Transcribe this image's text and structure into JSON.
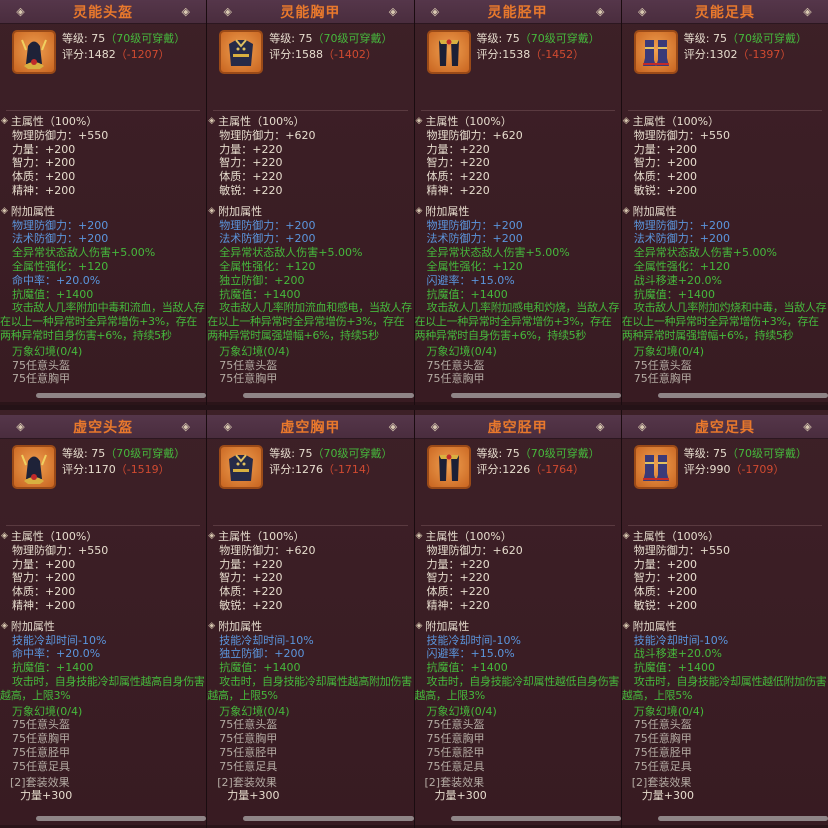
{
  "panels": [
    {
      "title": "灵能头盔",
      "level_label": "等级:",
      "level": "75",
      "req": "（70级可穿戴）",
      "score_label": "评分:",
      "score": "1482",
      "diff": "（-1207）",
      "main_header": "主属性（100%）",
      "main_attrs": [
        "物理防御力：+550",
        "力量：+200",
        "智力：+200",
        "体质：+200",
        "精神：+200"
      ],
      "extra_header": "附加属性",
      "extra_attrs": [
        {
          "text": "物理防御力：+200",
          "color": "blue"
        },
        {
          "text": "法术防御力：+200",
          "color": "blue"
        },
        {
          "text": "全异常状态敌人伤害+5.00%",
          "color": "green"
        },
        {
          "text": "全属性强化：+120",
          "color": "green"
        },
        {
          "text": "命中率：+20.0%",
          "color": "blue"
        },
        {
          "text": "抗魔值：+1400",
          "color": "green"
        }
      ],
      "effect": "攻击敌人几率附加中毒和流血，当敌人存在以上一种异常时全异常增伤+3%，存在两种异常时自身伤害+6%，持续5秒",
      "set_name": "万象幻境(0/4)",
      "set_items": [
        "75任意头盔",
        "75任意胸甲"
      ],
      "icon": "helmet-icon"
    },
    {
      "title": "灵能胸甲",
      "level_label": "等级:",
      "level": "75",
      "req": "（70级可穿戴）",
      "score_label": "评分:",
      "score": "1588",
      "diff": "（-1402）",
      "main_header": "主属性（100%）",
      "main_attrs": [
        "物理防御力：+620",
        "力量：+220",
        "智力：+220",
        "体质：+220",
        "敏锐：+220"
      ],
      "extra_header": "附加属性",
      "extra_attrs": [
        {
          "text": "物理防御力：+200",
          "color": "blue"
        },
        {
          "text": "法术防御力：+200",
          "color": "blue"
        },
        {
          "text": "全异常状态敌人伤害+5.00%",
          "color": "green"
        },
        {
          "text": "全属性强化：+120",
          "color": "green"
        },
        {
          "text": "独立防御：+200",
          "color": "green"
        },
        {
          "text": "抗魔值：+1400",
          "color": "green"
        }
      ],
      "effect": "攻击敌人几率附加流血和感电，当敌人存在以上一种异常时全异常增伤+3%，存在两种异常时属强增幅+6%，持续5秒",
      "set_name": "万象幻境(0/4)",
      "set_items": [
        "75任意头盔",
        "75任意胸甲"
      ],
      "icon": "chest-armor-icon"
    },
    {
      "title": "灵能胫甲",
      "level_label": "等级:",
      "level": "75",
      "req": "（70级可穿戴）",
      "score_label": "评分:",
      "score": "1538",
      "diff": "（-1452）",
      "main_header": "主属性（100%）",
      "main_attrs": [
        "物理防御力：+620",
        "力量：+220",
        "智力：+220",
        "体质：+220",
        "精神：+220"
      ],
      "extra_header": "附加属性",
      "extra_attrs": [
        {
          "text": "物理防御力：+200",
          "color": "blue"
        },
        {
          "text": "法术防御力：+200",
          "color": "blue"
        },
        {
          "text": "全异常状态敌人伤害+5.00%",
          "color": "green"
        },
        {
          "text": "全属性强化：+120",
          "color": "green"
        },
        {
          "text": "闪避率：+15.0%",
          "color": "blue"
        },
        {
          "text": "抗魔值：+1400",
          "color": "green"
        }
      ],
      "effect": "攻击敌人几率附加感电和灼烧，当敌人存在以上一种异常时全异常增伤+3%，存在两种异常时自身伤害+6%，持续5秒",
      "set_name": "万象幻境(0/4)",
      "set_items": [
        "75任意头盔",
        "75任意胸甲"
      ],
      "icon": "leg-armor-icon"
    },
    {
      "title": "灵能足具",
      "level_label": "等级:",
      "level": "75",
      "req": "（70级可穿戴）",
      "score_label": "评分:",
      "score": "1302",
      "diff": "（-1397）",
      "main_header": "主属性（100%）",
      "main_attrs": [
        "物理防御力：+550",
        "力量：+200",
        "智力：+200",
        "体质：+200",
        "敏锐：+200"
      ],
      "extra_header": "附加属性",
      "extra_attrs": [
        {
          "text": "物理防御力：+200",
          "color": "blue"
        },
        {
          "text": "法术防御力：+200",
          "color": "blue"
        },
        {
          "text": "全异常状态敌人伤害+5.00%",
          "color": "green"
        },
        {
          "text": "全属性强化：+120",
          "color": "green"
        },
        {
          "text": "战斗移速+20.0%",
          "color": "green"
        },
        {
          "text": "抗魔值：+1400",
          "color": "green"
        }
      ],
      "effect": "攻击敌人几率附加灼烧和中毒，当敌人存在以上一种异常时全异常增伤+3%，存在两种异常时属强增幅+6%，持续5秒",
      "set_name": "万象幻境(0/4)",
      "set_items": [
        "75任意头盔",
        "75任意胸甲"
      ],
      "icon": "boots-icon"
    },
    {
      "title": "虚空头盔",
      "level_label": "等级:",
      "level": "75",
      "req": "（70级可穿戴）",
      "score_label": "评分:",
      "score": "1170",
      "diff": "（-1519）",
      "main_header": "主属性（100%）",
      "main_attrs": [
        "物理防御力：+550",
        "力量：+200",
        "智力：+200",
        "体质：+200",
        "精神：+200"
      ],
      "extra_header": "附加属性",
      "extra_attrs": [
        {
          "text": "技能冷却时间-10%",
          "color": "blue"
        },
        {
          "text": "命中率：+20.0%",
          "color": "blue"
        },
        {
          "text": "抗魔值：+1400",
          "color": "green"
        }
      ],
      "effect": "攻击时，自身技能冷却属性越高自身伤害越高，上限3%",
      "set_name": "万象幻境(0/4)",
      "set_items": [
        "75任意头盔",
        "75任意胸甲",
        "75任意胫甲",
        "75任意足具"
      ],
      "set_effect_title": "[2]套装效果",
      "set_effect": "力量+300",
      "icon": "helmet-icon"
    },
    {
      "title": "虚空胸甲",
      "level_label": "等级:",
      "level": "75",
      "req": "（70级可穿戴）",
      "score_label": "评分:",
      "score": "1276",
      "diff": "（-1714）",
      "main_header": "主属性（100%）",
      "main_attrs": [
        "物理防御力：+620",
        "力量：+220",
        "智力：+220",
        "体质：+220",
        "敏锐：+220"
      ],
      "extra_header": "附加属性",
      "extra_attrs": [
        {
          "text": "技能冷却时间-10%",
          "color": "blue"
        },
        {
          "text": "独立防御：+200",
          "color": "blue"
        },
        {
          "text": "抗魔值：+1400",
          "color": "green"
        }
      ],
      "effect": "攻击时，自身技能冷却属性越高附加伤害越高，上限5%",
      "set_name": "万象幻境(0/4)",
      "set_items": [
        "75任意头盔",
        "75任意胸甲",
        "75任意胫甲",
        "75任意足具"
      ],
      "set_effect_title": "[2]套装效果",
      "set_effect": "力量+300",
      "icon": "chest-armor-icon"
    },
    {
      "title": "虚空胫甲",
      "level_label": "等级:",
      "level": "75",
      "req": "（70级可穿戴）",
      "score_label": "评分:",
      "score": "1226",
      "diff": "（-1764）",
      "main_header": "主属性（100%）",
      "main_attrs": [
        "物理防御力：+620",
        "力量：+220",
        "智力：+220",
        "体质：+220",
        "精神：+220"
      ],
      "extra_header": "附加属性",
      "extra_attrs": [
        {
          "text": "技能冷却时间-10%",
          "color": "blue"
        },
        {
          "text": "闪避率：+15.0%",
          "color": "blue"
        },
        {
          "text": "抗魔值：+1400",
          "color": "green"
        }
      ],
      "effect": "攻击时，自身技能冷却属性越低自身伤害越高，上限3%",
      "set_name": "万象幻境(0/4)",
      "set_items": [
        "75任意头盔",
        "75任意胸甲",
        "75任意胫甲",
        "75任意足具"
      ],
      "set_effect_title": "[2]套装效果",
      "set_effect": "力量+300",
      "icon": "leg-armor-icon"
    },
    {
      "title": "虚空足具",
      "level_label": "等级:",
      "level": "75",
      "req": "（70级可穿戴）",
      "score_label": "评分:",
      "score": "990",
      "diff": "（-1709）",
      "main_header": "主属性（100%）",
      "main_attrs": [
        "物理防御力：+550",
        "力量：+200",
        "智力：+200",
        "体质：+200",
        "敏锐：+200"
      ],
      "extra_header": "附加属性",
      "extra_attrs": [
        {
          "text": "技能冷却时间-10%",
          "color": "blue"
        },
        {
          "text": "战斗移速+20.0%",
          "color": "green"
        },
        {
          "text": "抗魔值：+1400",
          "color": "green"
        }
      ],
      "effect": "攻击时，自身技能冷却属性越低附加伤害越高，上限5%",
      "set_name": "万象幻境(0/4)",
      "set_items": [
        "75任意头盔",
        "75任意胸甲",
        "75任意胫甲",
        "75任意足具"
      ],
      "set_effect_title": "[2]套装效果",
      "set_effect": "力量+300",
      "icon": "boots-icon"
    }
  ],
  "colors": {
    "title": "#e8782c",
    "green": "#46b83c",
    "blue": "#5b95dc",
    "red": "#d04a30",
    "text": "#e6dccd",
    "set_item": "#b4aba3"
  }
}
